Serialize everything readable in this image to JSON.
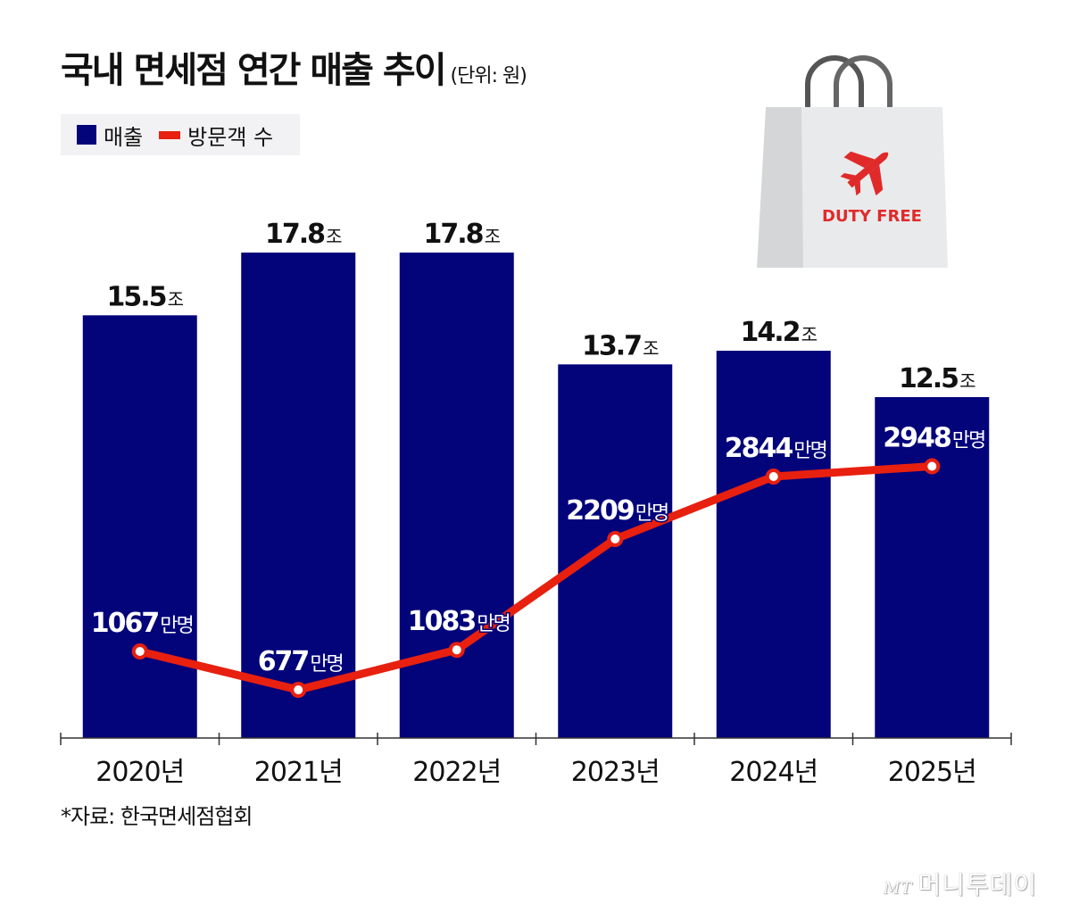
{
  "title": "국내 면세점 연간 매출 추이",
  "unit": "(단위: 원)",
  "source": "*자료: 한국면세점협회",
  "logo": {
    "mark": "MT",
    "text": "머니투데이"
  },
  "illustration": {
    "text": "DUTY FREE",
    "icon": "airplane-icon"
  },
  "colors": {
    "bar": "#03037a",
    "line": "#e8200f",
    "bag_text": "#e02a2a"
  },
  "chart_data": {
    "type": "bar+line",
    "categories": [
      "2020년",
      "2021년",
      "2022년",
      "2023년",
      "2024년",
      "2025년"
    ],
    "legend_position": "top-left",
    "series": [
      {
        "name": "매출",
        "type": "bar",
        "values": [
          15.5,
          17.8,
          17.8,
          13.7,
          14.2,
          12.5
        ],
        "value_suffix": "조"
      },
      {
        "name": "방문객 수",
        "type": "line",
        "values": [
          1067,
          677,
          1083,
          2209,
          2844,
          2948
        ],
        "value_suffix": "만명"
      }
    ]
  }
}
